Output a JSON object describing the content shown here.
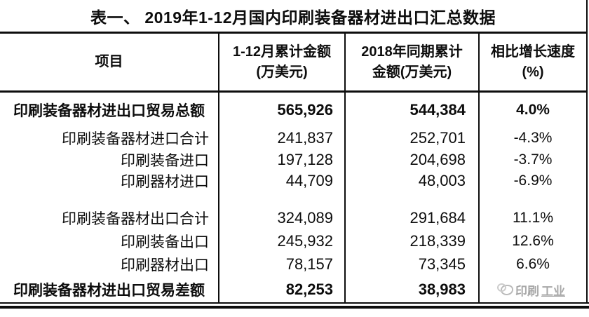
{
  "title": "表一、 2019年1-12月国内印刷装备器材进出口汇总数据",
  "table": {
    "headers": {
      "item": "项目",
      "amount2019_line1": "1-12月累计金额",
      "amount2019_line2": "(万美元)",
      "amount2018_line1": "2018年同期累计",
      "amount2018_line2": "金额(万美元)",
      "growth_line1": "相比增长速度",
      "growth_line2": "(%)"
    },
    "rows": [
      {
        "label": "印刷装备器材进出口贸易总额",
        "v2019": "565,926",
        "v2018": "544,384",
        "growth": "4.0%"
      },
      {
        "label": "印刷装备器材进口合计",
        "v2019": "241,837",
        "v2018": "252,701",
        "growth": "-4.3%"
      },
      {
        "label": "印刷装备进口",
        "v2019": "197,128",
        "v2018": "204,698",
        "growth": "-3.7%"
      },
      {
        "label": "印刷器材进口",
        "v2019": "44,709",
        "v2018": "48,003",
        "growth": "-6.9%"
      },
      {
        "label": "印刷装备器材出口合计",
        "v2019": "324,089",
        "v2018": "291,684",
        "growth": "11.1%"
      },
      {
        "label": "印刷装备出口",
        "v2019": "245,932",
        "v2018": "218,339",
        "growth": "12.6%"
      },
      {
        "label": "印刷器材出口",
        "v2019": "78,157",
        "v2018": "73,345",
        "growth": "6.6%"
      },
      {
        "label": "印刷装备器材进出口贸易差额",
        "v2019": "82,253",
        "v2018": "38,983",
        "growth": ""
      }
    ]
  },
  "watermark": {
    "text_plain": "印刷",
    "text_underlined": "工业"
  },
  "colors": {
    "text": "#0d0d0d",
    "border": "#0d0d0d",
    "background": "#ffffff",
    "watermark": "#9a9a9a"
  },
  "chart_data": {
    "type": "table",
    "title": "表一、 2019年1-12月国内印刷装备器材进出口汇总数据",
    "columns": [
      "项目",
      "1-12月累计金额(万美元)",
      "2018年同期累计金额(万美元)",
      "相比增长速度(%)"
    ],
    "rows": [
      [
        "印刷装备器材进出口贸易总额",
        565926,
        544384,
        4.0
      ],
      [
        "印刷装备器材进口合计",
        241837,
        252701,
        -4.3
      ],
      [
        "印刷装备进口",
        197128,
        204698,
        -3.7
      ],
      [
        "印刷器材进口",
        44709,
        48003,
        -6.9
      ],
      [
        "印刷装备器材出口合计",
        324089,
        291684,
        11.1
      ],
      [
        "印刷装备出口",
        245932,
        218339,
        12.6
      ],
      [
        "印刷器材出口",
        78157,
        73345,
        6.6
      ],
      [
        "印刷装备器材进出口贸易差额",
        82253,
        38983,
        null
      ]
    ],
    "unit": "万美元",
    "emphasized_row_indices": [
      0,
      7
    ]
  }
}
